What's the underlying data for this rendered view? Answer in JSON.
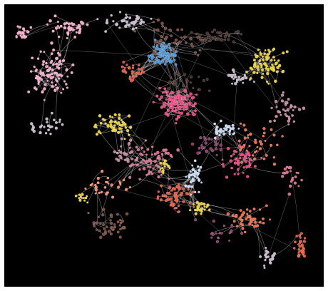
{
  "figure": {
    "background": "#000000",
    "edge_color": "#d9d9d9",
    "node_outline": "#ffffff",
    "communities": [
      {
        "name": "steel-blue",
        "color": "#4a8fd0"
      },
      {
        "name": "hot-pink",
        "color": "#f0407c"
      },
      {
        "name": "yellow",
        "color": "#e8cf3a"
      },
      {
        "name": "light-pink",
        "color": "#f2a6c6"
      },
      {
        "name": "pale-blue",
        "color": "#c6d8ef"
      },
      {
        "name": "coral",
        "color": "#f06a48"
      },
      {
        "name": "mauve",
        "color": "#c3859b"
      },
      {
        "name": "brown",
        "color": "#7a4a3e"
      },
      {
        "name": "plum",
        "color": "#8a3d63"
      },
      {
        "name": "orange-red",
        "color": "#e8553a"
      },
      {
        "name": "lavender-grey",
        "color": "#c6b7c8"
      },
      {
        "name": "dark-brown",
        "color": "#4a2e2a"
      },
      {
        "name": "salmon",
        "color": "#f08a6a"
      },
      {
        "name": "rose",
        "color": "#d86a8a"
      }
    ]
  }
}
